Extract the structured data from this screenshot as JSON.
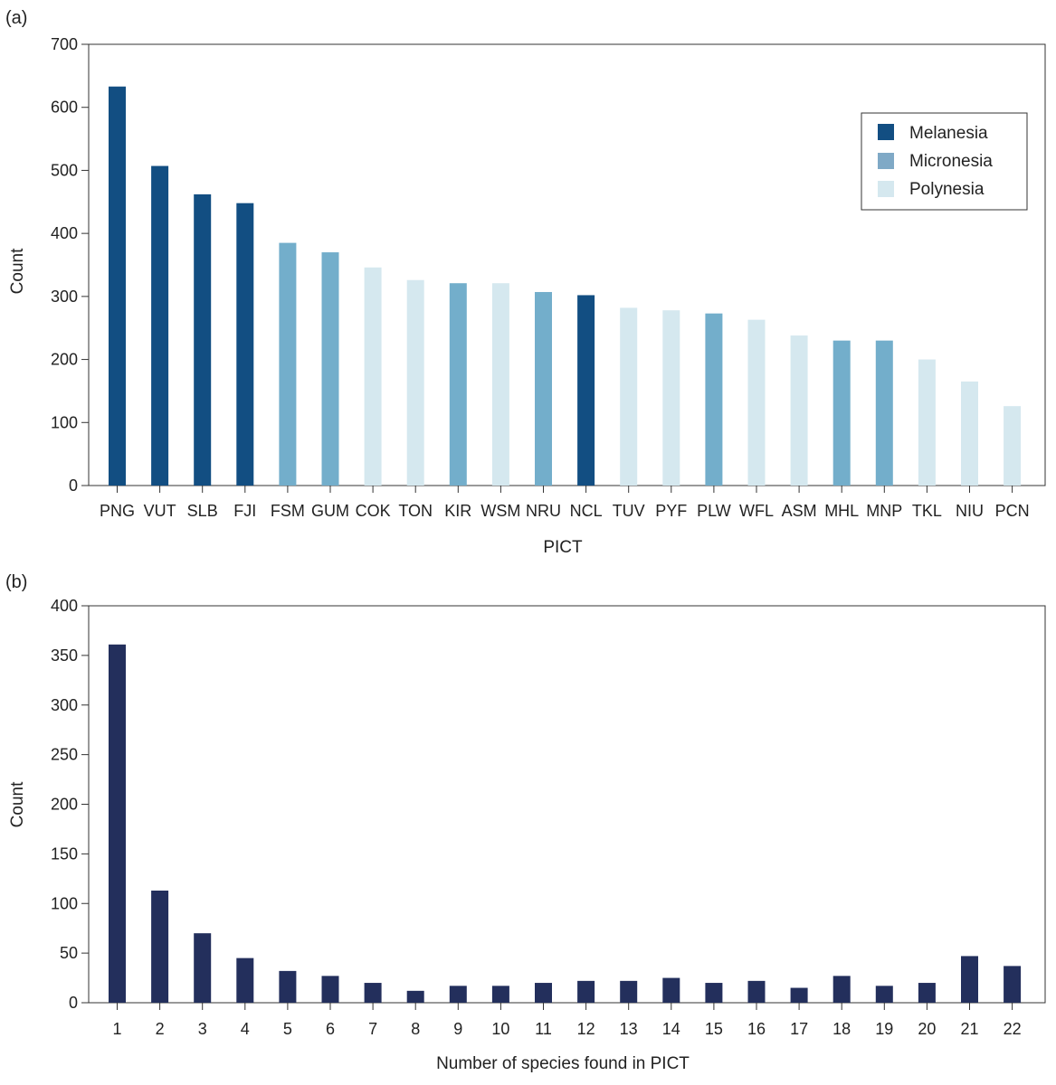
{
  "chart_data": [
    {
      "panel_label": "(a)",
      "type": "bar",
      "title": "",
      "xlabel": "PICT",
      "ylabel": "Count",
      "ylim": [
        0,
        700
      ],
      "yticks": [
        0,
        100,
        200,
        300,
        400,
        500,
        600,
        700
      ],
      "categories": [
        "PNG",
        "VUT",
        "SLB",
        "FJI",
        "FSM",
        "GUM",
        "COK",
        "TON",
        "KIR",
        "WSM",
        "NRU",
        "NCL",
        "TUV",
        "PYF",
        "PLW",
        "WFL",
        "ASM",
        "MHL",
        "MNP",
        "TKL",
        "NIU",
        "PCN"
      ],
      "values": [
        633,
        507,
        462,
        448,
        385,
        370,
        346,
        326,
        321,
        321,
        307,
        302,
        282,
        278,
        273,
        263,
        238,
        230,
        230,
        200,
        165,
        126
      ],
      "groups": [
        "Melanesia",
        "Melanesia",
        "Melanesia",
        "Melanesia",
        "Micronesia",
        "Micronesia",
        "Polynesia",
        "Polynesia",
        "Micronesia",
        "Polynesia",
        "Micronesia",
        "Melanesia",
        "Polynesia",
        "Polynesia",
        "Micronesia",
        "Polynesia",
        "Polynesia",
        "Micronesia",
        "Micronesia",
        "Polynesia",
        "Polynesia",
        "Polynesia"
      ],
      "legend": {
        "position": "top-right",
        "entries": [
          {
            "label": "Melanesia",
            "color": "#124e82"
          },
          {
            "label": "Micronesia",
            "color": "#73aecb"
          },
          {
            "label": "Polynesia",
            "color": "#d5e8ef"
          }
        ]
      },
      "legend_swatch_colors": [
        "#124e82",
        "#7fa9c6",
        "#d5e8ef"
      ],
      "grid": false
    },
    {
      "panel_label": "(b)",
      "type": "bar",
      "title": "",
      "xlabel": "Number of species found in PICT",
      "ylabel": "Count",
      "ylim": [
        0,
        400
      ],
      "yticks": [
        0,
        50,
        100,
        150,
        200,
        250,
        300,
        350,
        400
      ],
      "categories": [
        "1",
        "2",
        "3",
        "4",
        "5",
        "6",
        "7",
        "8",
        "9",
        "10",
        "11",
        "12",
        "13",
        "14",
        "15",
        "16",
        "17",
        "18",
        "19",
        "20",
        "21",
        "22"
      ],
      "values": [
        361,
        113,
        70,
        45,
        32,
        27,
        20,
        12,
        17,
        17,
        20,
        22,
        22,
        25,
        20,
        22,
        15,
        27,
        17,
        20,
        47,
        37
      ],
      "color": "#232f5c",
      "grid": false
    }
  ]
}
